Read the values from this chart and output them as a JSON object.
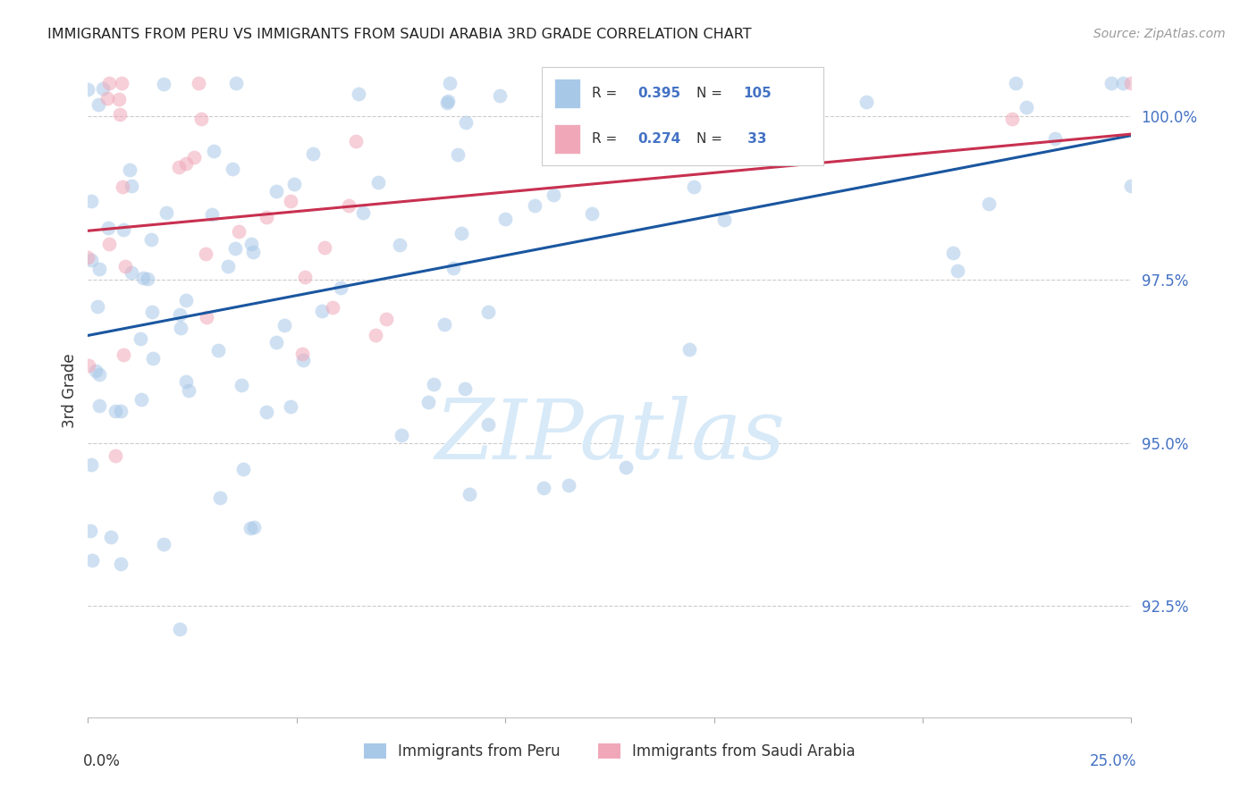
{
  "title": "IMMIGRANTS FROM PERU VS IMMIGRANTS FROM SAUDI ARABIA 3RD GRADE CORRELATION CHART",
  "source": "Source: ZipAtlas.com",
  "ylabel": "3rd Grade",
  "xlim": [
    0.0,
    0.25
  ],
  "ylim": [
    0.908,
    1.008
  ],
  "yticks": [
    0.925,
    0.95,
    0.975,
    1.0
  ],
  "ytick_labels": [
    "92.5%",
    "95.0%",
    "97.5%",
    "100.0%"
  ],
  "legend_label_peru": "Immigrants from Peru",
  "legend_label_saudi": "Immigrants from Saudi Arabia",
  "peru_color": "#A8C8E8",
  "peru_line_color": "#1A56A0",
  "saudi_color": "#F0A8B8",
  "saudi_line_color": "#C83050",
  "background_color": "#ffffff",
  "title_color": "#222222",
  "source_color": "#999999",
  "axis_label_color": "#333333",
  "right_tick_color": "#4472C4",
  "grid_color": "#cccccc",
  "watermark_color": "#d8eaf8"
}
